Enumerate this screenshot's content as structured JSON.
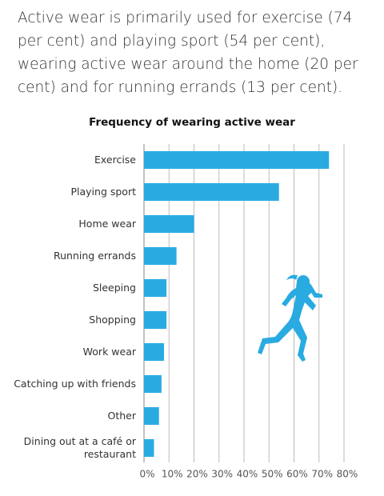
{
  "chart_data": {
    "type": "hbar",
    "subtitle": "Active wear is primarily used for exercise (74 per cent) and playing sport (54 per cent), wearing active wear around the home (20 per cent) and for running errands (13 per cent).",
    "title": "Frequency of wearing active wear",
    "categories": [
      "Exercise",
      "Playing sport",
      "Home wear",
      "Running errands",
      "Sleeping",
      "Shopping",
      "Work wear",
      "Catching up with friends",
      "Other",
      "Dining out at a café or restaurant"
    ],
    "values": [
      74,
      54,
      20,
      13,
      9,
      9,
      8,
      7,
      6,
      4
    ],
    "color": "#29abe2",
    "xlim": [
      0,
      80
    ],
    "xticks": [
      {
        "value": 0,
        "label": "0%"
      },
      {
        "value": 10,
        "label": "10%"
      },
      {
        "value": 20,
        "label": "20%"
      },
      {
        "value": 30,
        "label": "30%"
      },
      {
        "value": 40,
        "label": "40%"
      },
      {
        "value": 50,
        "label": "50%"
      },
      {
        "value": 60,
        "label": "60%"
      },
      {
        "value": 70,
        "label": "70%"
      },
      {
        "value": 80,
        "label": "80%"
      }
    ],
    "grid": true
  }
}
